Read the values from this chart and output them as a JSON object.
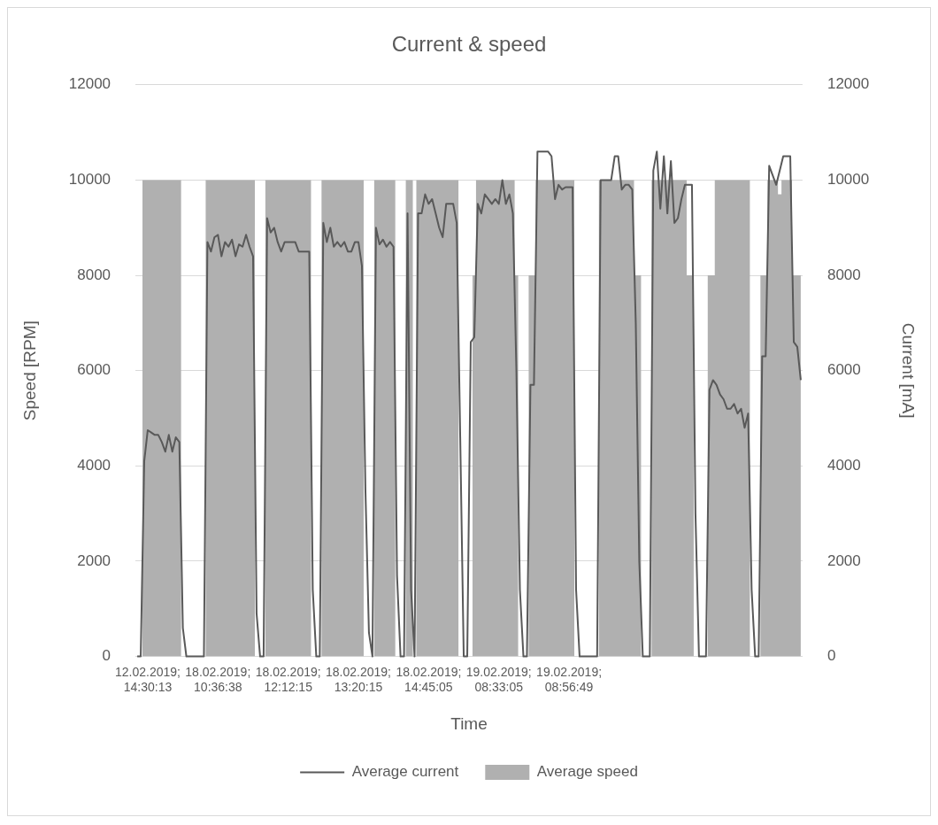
{
  "chart_data": {
    "type": "area",
    "title": "Current & speed",
    "xlabel": "Time",
    "ylabel": "Speed [RPM]",
    "y2label": "Current [mA]",
    "categories": [
      null,
      null,
      null,
      "12.02.2019; 14:30:13",
      null,
      null,
      null,
      null,
      null,
      null,
      null,
      null,
      null,
      null,
      null,
      null,
      null,
      null,
      null,
      null,
      null,
      null,
      null,
      "18.02.2019; 10:36:38",
      null,
      null,
      null,
      null,
      null,
      null,
      null,
      null,
      null,
      null,
      null,
      null,
      null,
      null,
      null,
      null,
      null,
      null,
      null,
      "18.02.2019; 12:12:15",
      null,
      null,
      null,
      null,
      null,
      null,
      null,
      null,
      null,
      null,
      null,
      null,
      null,
      null,
      null,
      null,
      null,
      null,
      null,
      "18.02.2019; 13:20:15",
      null,
      null,
      null,
      null,
      null,
      null,
      null,
      null,
      null,
      null,
      null,
      null,
      null,
      null,
      null,
      null,
      null,
      null,
      null,
      "18.02.2019; 14:45:05",
      null,
      null,
      null,
      null,
      null,
      null,
      null,
      null,
      null,
      null,
      null,
      null,
      null,
      null,
      null,
      null,
      null,
      null,
      null,
      "19.02.2019; 08:33:05",
      null,
      null,
      null,
      null,
      null,
      null,
      null,
      null,
      null,
      null,
      null,
      null,
      null,
      null,
      null,
      null,
      null,
      null,
      null,
      "19.02.2019; 08:56:49",
      null,
      null,
      null,
      null,
      null,
      null,
      null,
      null,
      null,
      null,
      null,
      null,
      null,
      null,
      null,
      null,
      null,
      null,
      null,
      null,
      null,
      null,
      null,
      null,
      null,
      null,
      null,
      null,
      null,
      null,
      null,
      null,
      null,
      null,
      null,
      null,
      null,
      null,
      null,
      null,
      null,
      null,
      null,
      null,
      null,
      null,
      null,
      null,
      null,
      null,
      null,
      null,
      null,
      null,
      null,
      null,
      null,
      null,
      null,
      null,
      null,
      null,
      null,
      null,
      null,
      null
    ],
    "series": [
      {
        "name": "Average speed",
        "color": "#b0b0b0",
        "values": [
          0,
          0,
          10000,
          10000,
          10000,
          10000,
          10000,
          10000,
          10000,
          10000,
          10000,
          10000,
          10000,
          0,
          0,
          0,
          0,
          0,
          0,
          0,
          10000,
          10000,
          10000,
          10000,
          10000,
          10000,
          10000,
          10000,
          10000,
          10000,
          10000,
          10000,
          10000,
          10000,
          0,
          0,
          0,
          10000,
          10000,
          10000,
          10000,
          10000,
          10000,
          10000,
          10000,
          10000,
          10000,
          10000,
          10000,
          10000,
          0,
          0,
          0,
          10000,
          10000,
          10000,
          10000,
          10000,
          10000,
          10000,
          10000,
          10000,
          10000,
          10000,
          10000,
          0,
          0,
          0,
          10000,
          10000,
          10000,
          10000,
          10000,
          10000,
          0,
          0,
          0,
          10000,
          10000,
          0,
          10000,
          10000,
          10000,
          10000,
          10000,
          10000,
          10000,
          10000,
          10000,
          10000,
          10000,
          10000,
          0,
          0,
          0,
          0,
          8000,
          10000,
          10000,
          10000,
          10000,
          10000,
          10000,
          10000,
          10000,
          10000,
          10000,
          10000,
          8000,
          0,
          0,
          0,
          8000,
          8000,
          10000,
          10000,
          10000,
          10000,
          10000,
          10000,
          10000,
          10000,
          10000,
          10000,
          10000,
          0,
          0,
          0,
          0,
          0,
          0,
          0,
          10000,
          10000,
          10000,
          10000,
          10000,
          10000,
          10000,
          10000,
          10000,
          10000,
          8000,
          8000,
          0,
          0,
          0,
          10000,
          10000,
          10000,
          10000,
          10000,
          10000,
          10000,
          10000,
          10000,
          10000,
          8000,
          8000,
          0,
          0,
          0,
          0,
          8000,
          8000,
          10000,
          10000,
          10000,
          10000,
          10000,
          10000,
          10000,
          10000,
          10000,
          10000,
          0,
          0,
          0,
          8000,
          8000,
          10000,
          10000,
          10000,
          9700,
          10000,
          10000,
          10000,
          8000,
          8000,
          8000
        ]
      },
      {
        "name": "Average current",
        "type": "line",
        "axis": "y2",
        "color": "#595959",
        "values": [
          0,
          0,
          4100,
          4750,
          4700,
          4650,
          4650,
          4500,
          4300,
          4650,
          4300,
          4600,
          4500,
          600,
          0,
          0,
          0,
          0,
          0,
          0,
          8700,
          8500,
          8800,
          8850,
          8400,
          8700,
          8600,
          8750,
          8400,
          8650,
          8600,
          8850,
          8600,
          8400,
          900,
          0,
          0,
          9200,
          8900,
          9000,
          8700,
          8500,
          8700,
          8700,
          8700,
          8700,
          8500,
          8500,
          8500,
          8500,
          1400,
          0,
          0,
          9100,
          8700,
          9000,
          8600,
          8700,
          8600,
          8700,
          8500,
          8500,
          8700,
          8700,
          8200,
          3500,
          500,
          0,
          9000,
          8650,
          8750,
          8600,
          8700,
          8600,
          1700,
          0,
          0,
          9300,
          1400,
          0,
          9300,
          9300,
          9700,
          9500,
          9600,
          9300,
          9000,
          8800,
          9500,
          9500,
          9500,
          9100,
          4600,
          0,
          0,
          6600,
          6700,
          9500,
          9300,
          9700,
          9600,
          9500,
          9600,
          9500,
          10000,
          9500,
          9700,
          9300,
          6000,
          1400,
          0,
          0,
          5700,
          5700,
          10600,
          10600,
          10600,
          10600,
          10500,
          9600,
          9900,
          9800,
          9850,
          9850,
          9850,
          1400,
          0,
          0,
          0,
          0,
          0,
          0,
          10000,
          10000,
          10000,
          10000,
          10500,
          10500,
          9800,
          9900,
          9900,
          9800,
          7000,
          2000,
          0,
          0,
          0,
          10200,
          10600,
          9400,
          10500,
          9300,
          10400,
          9100,
          9200,
          9600,
          9900,
          9900,
          9900,
          3000,
          0,
          0,
          0,
          5600,
          5800,
          5700,
          5500,
          5400,
          5200,
          5200,
          5300,
          5100,
          5200,
          4800,
          5100,
          1400,
          0,
          0,
          6300,
          6300,
          10300,
          10100,
          9900,
          10200,
          10500,
          10500,
          10500,
          6600,
          6500,
          5800
        ]
      }
    ],
    "ylim": [
      0,
      12000
    ],
    "yticks": [
      0,
      2000,
      4000,
      6000,
      8000,
      10000,
      12000
    ],
    "y2lim": [
      0,
      12000
    ],
    "y2ticks": [
      0,
      2000,
      4000,
      6000,
      8000,
      10000,
      12000
    ],
    "grid": "y",
    "legend": "bottom",
    "marker": "none"
  }
}
